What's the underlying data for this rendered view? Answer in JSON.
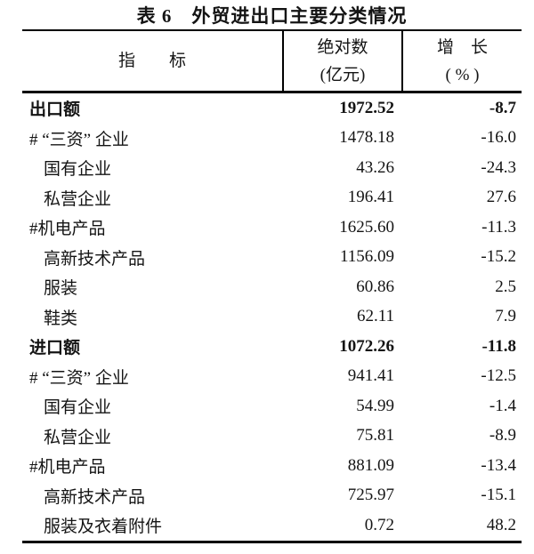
{
  "title": "表 6　外贸进出口主要分类情况",
  "table": {
    "header": {
      "indicator": "指　　标",
      "absolute_line1": "绝对数",
      "absolute_line2": "(亿元)",
      "growth_line1": "增　长",
      "growth_line2": "( % )"
    },
    "rows": [
      {
        "indicator": "出口额",
        "absolute": "1972.52",
        "growth": "-8.7",
        "bold": true,
        "indent": 0
      },
      {
        "indicator": "# “三资” 企业",
        "absolute": "1478.18",
        "growth": "-16.0",
        "bold": false,
        "indent": 0
      },
      {
        "indicator": "国有企业",
        "absolute": "43.26",
        "growth": "-24.3",
        "bold": false,
        "indent": 1
      },
      {
        "indicator": "私营企业",
        "absolute": "196.41",
        "growth": "27.6",
        "bold": false,
        "indent": 1
      },
      {
        "indicator": "#机电产品",
        "absolute": "1625.60",
        "growth": "-11.3",
        "bold": false,
        "indent": 0
      },
      {
        "indicator": "高新技术产品",
        "absolute": "1156.09",
        "growth": "-15.2",
        "bold": false,
        "indent": 1
      },
      {
        "indicator": "服装",
        "absolute": "60.86",
        "growth": "2.5",
        "bold": false,
        "indent": 1
      },
      {
        "indicator": "鞋类",
        "absolute": "62.11",
        "growth": "7.9",
        "bold": false,
        "indent": 1
      },
      {
        "indicator": "进口额",
        "absolute": "1072.26",
        "growth": "-11.8",
        "bold": true,
        "indent": 0
      },
      {
        "indicator": "# “三资” 企业",
        "absolute": "941.41",
        "growth": "-12.5",
        "bold": false,
        "indent": 0
      },
      {
        "indicator": "国有企业",
        "absolute": "54.99",
        "growth": "-1.4",
        "bold": false,
        "indent": 1
      },
      {
        "indicator": "私营企业",
        "absolute": "75.81",
        "growth": "-8.9",
        "bold": false,
        "indent": 1
      },
      {
        "indicator": "#机电产品",
        "absolute": "881.09",
        "growth": "-13.4",
        "bold": false,
        "indent": 0
      },
      {
        "indicator": "高新技术产品",
        "absolute": "725.97",
        "growth": "-15.1",
        "bold": false,
        "indent": 1
      },
      {
        "indicator": "服装及衣着附件",
        "absolute": "0.72",
        "growth": "48.2",
        "bold": false,
        "indent": 1
      }
    ]
  }
}
